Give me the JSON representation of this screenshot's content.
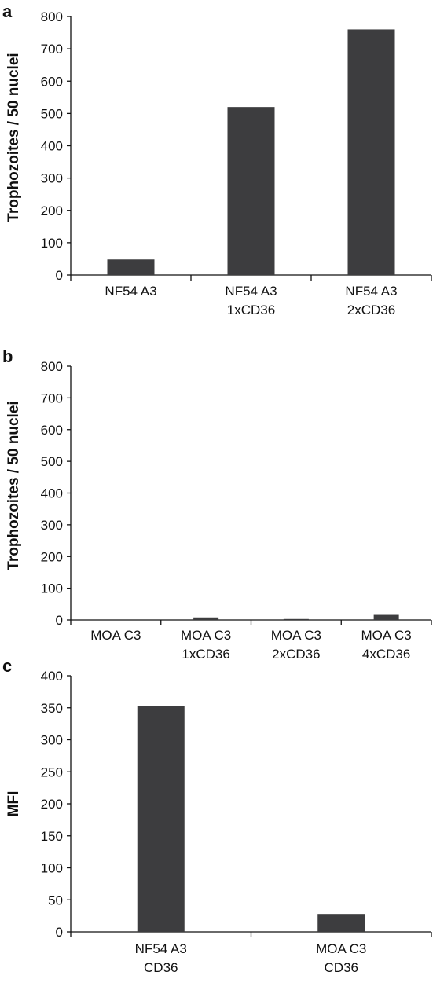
{
  "chart_data": [
    {
      "type": "bar",
      "panel_label": "a",
      "ylabel": "Trophozoites / 50 nuclei",
      "ylim": [
        0,
        800
      ],
      "yticks": [
        0,
        100,
        200,
        300,
        400,
        500,
        600,
        700,
        800
      ],
      "categories": [
        [
          "NF54 A3"
        ],
        [
          "NF54 A3",
          "1xCD36"
        ],
        [
          "NF54 A3",
          "2xCD36"
        ]
      ],
      "values": [
        48,
        520,
        760
      ],
      "bar_color": "#3d3d3f"
    },
    {
      "type": "bar",
      "panel_label": "b",
      "ylabel": "Trophozoites / 50 nuclei",
      "ylim": [
        0,
        800
      ],
      "yticks": [
        0,
        100,
        200,
        300,
        400,
        500,
        600,
        700,
        800
      ],
      "categories": [
        [
          "MOA C3"
        ],
        [
          "MOA C3",
          "1xCD36"
        ],
        [
          "MOA C3",
          "2xCD36"
        ],
        [
          "MOA C3",
          "4xCD36"
        ]
      ],
      "values": [
        0,
        8,
        3,
        16
      ],
      "bar_color": "#3d3d3f"
    },
    {
      "type": "bar",
      "panel_label": "c",
      "ylabel": "MFI",
      "ylim": [
        0,
        400
      ],
      "yticks": [
        0,
        50,
        100,
        150,
        200,
        250,
        300,
        350,
        400
      ],
      "categories": [
        [
          "NF54 A3",
          "CD36"
        ],
        [
          "MOA C3",
          "CD36"
        ]
      ],
      "values": [
        353,
        28
      ],
      "bar_color": "#3d3d3f"
    }
  ]
}
